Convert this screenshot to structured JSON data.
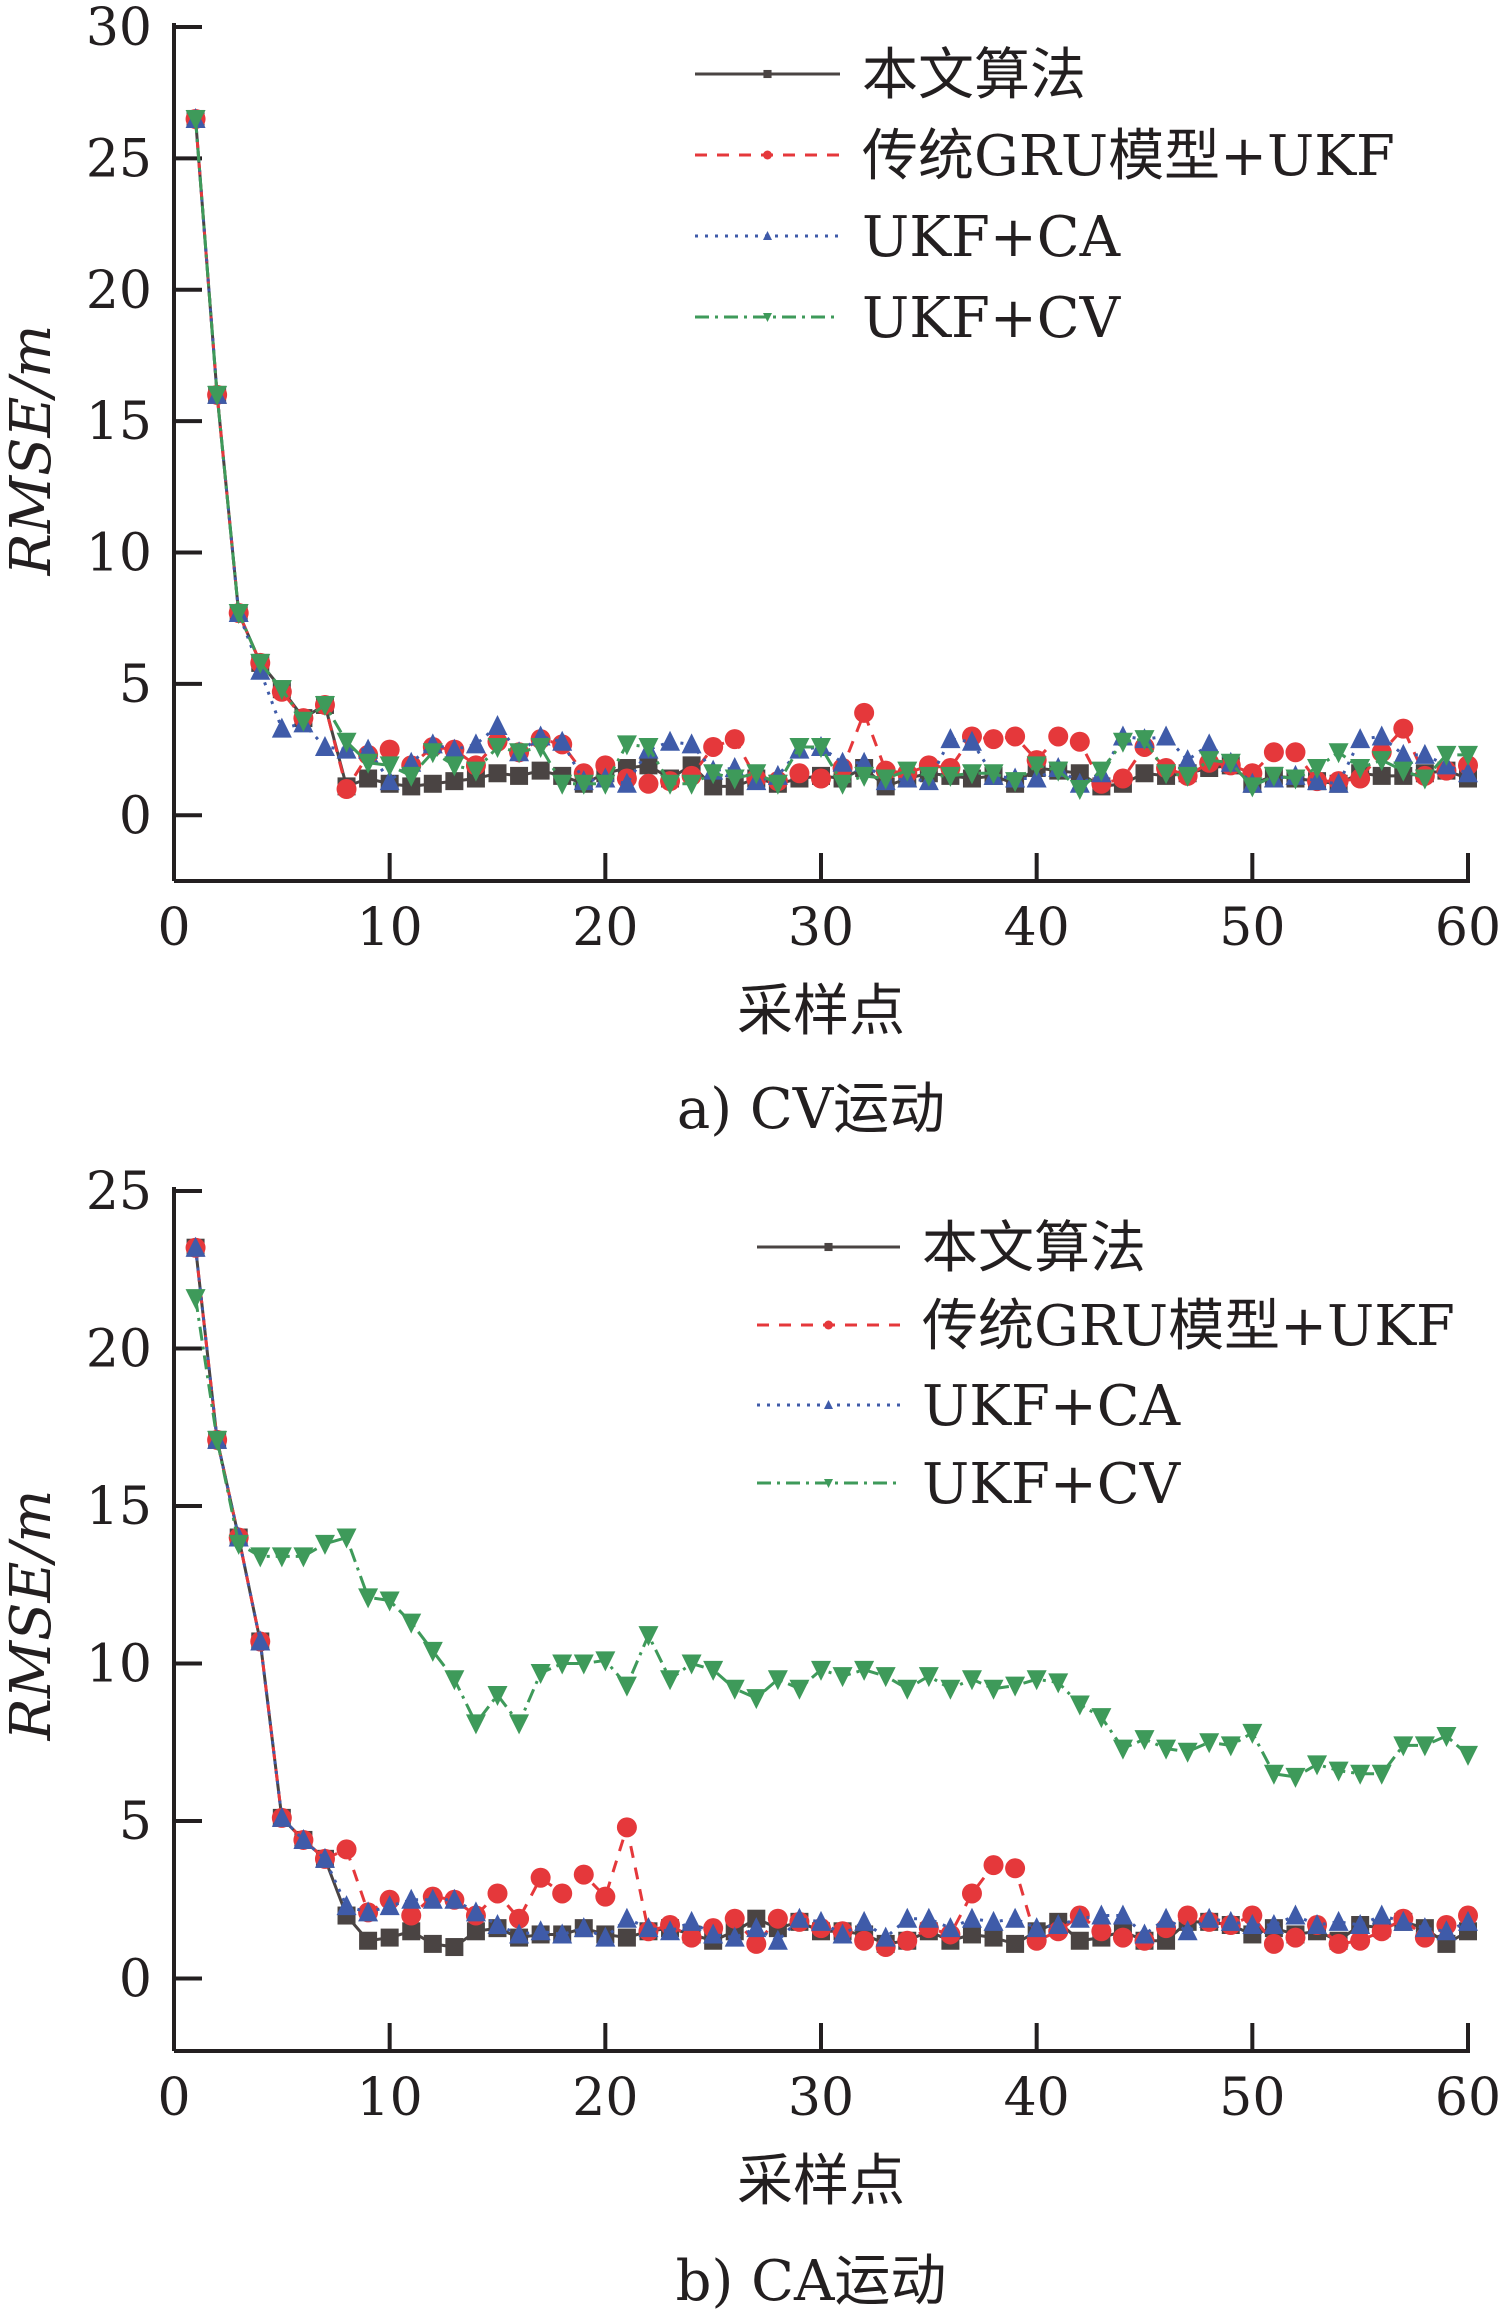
{
  "chart_data": [
    {
      "type": "line",
      "caption": "a) CV运动",
      "xlabel": "采样点",
      "ylabel": "RMSE/m",
      "xlim": [
        0,
        60
      ],
      "ylim": [
        -2.5,
        30
      ],
      "xticks": [
        0,
        10,
        20,
        30,
        40,
        50,
        60
      ],
      "yticks": [
        0,
        5,
        10,
        15,
        20,
        25,
        30
      ],
      "grid": false,
      "legend_position": "top-right",
      "x_start": 1,
      "series": [
        {
          "name": "本文算法",
          "color": "#4a4443",
          "marker": "square",
          "dash": "",
          "values": [
            26.5,
            16,
            7.7,
            5.8,
            4.8,
            3.7,
            4.2,
            1.1,
            1.4,
            1.2,
            1.1,
            1.2,
            1.3,
            1.4,
            1.6,
            1.5,
            1.7,
            1.5,
            1.2,
            1.6,
            1.8,
            1.9,
            1.4,
            1.9,
            1.1,
            1.1,
            1.4,
            1.2,
            1.4,
            1.5,
            1.4,
            1.8,
            1.1,
            1.4,
            1.6,
            1.5,
            1.4,
            1.5,
            1.2,
            1.8,
            1.7,
            1.6,
            1.1,
            1.2,
            1.6,
            1.5,
            1.6,
            1.8,
            1.9,
            1.2,
            1.5,
            1.4,
            1.3,
            1.2,
            1.6,
            1.5,
            1.5,
            1.6,
            1.7,
            1.4
          ]
        },
        {
          "name": "传统GRU模型+UKF",
          "color": "#e5383b",
          "marker": "circle",
          "dash": "12,10",
          "values": [
            26.5,
            16,
            7.7,
            5.8,
            4.7,
            3.7,
            4.2,
            1.0,
            2.3,
            2.5,
            1.9,
            2.6,
            2.5,
            1.9,
            2.8,
            2.4,
            2.9,
            2.7,
            1.6,
            1.9,
            1.4,
            1.2,
            1.3,
            1.5,
            2.6,
            2.9,
            1.4,
            1.3,
            1.6,
            1.4,
            1.8,
            3.9,
            1.7,
            1.6,
            1.9,
            1.8,
            3.0,
            2.9,
            3.0,
            2.1,
            3.0,
            2.8,
            1.2,
            1.4,
            2.6,
            1.8,
            1.5,
            2.0,
            1.9,
            1.6,
            2.4,
            2.4,
            1.3,
            1.3,
            1.4,
            2.4,
            3.3,
            1.5,
            1.7,
            1.9
          ]
        },
        {
          "name": "UKF+CA",
          "color": "#3f5ba9",
          "marker": "triangle-up",
          "dash": "3,7",
          "values": [
            26.5,
            16,
            7.7,
            5.5,
            3.3,
            3.5,
            2.6,
            2.5,
            2.5,
            1.3,
            2.0,
            2.7,
            2.5,
            2.7,
            3.4,
            2.4,
            3.0,
            2.8,
            1.3,
            1.4,
            1.2,
            2.5,
            2.8,
            2.7,
            1.7,
            1.8,
            1.3,
            1.5,
            2.5,
            2.6,
            2.0,
            2.0,
            1.3,
            1.4,
            1.3,
            2.9,
            2.8,
            1.5,
            1.4,
            1.4,
            1.8,
            1.2,
            1.6,
            3.0,
            2.9,
            3.0,
            2.1,
            2.7,
            2.0,
            1.2,
            1.4,
            1.5,
            1.3,
            1.2,
            2.9,
            3.0,
            2.3,
            2.3,
            1.9,
            1.6
          ]
        },
        {
          "name": "UKF+CV",
          "color": "#3e9a5a",
          "marker": "triangle-down",
          "dash": "14,6,3,6",
          "values": [
            26.5,
            16,
            7.7,
            5.8,
            4.8,
            3.6,
            4.2,
            2.8,
            2.0,
            1.9,
            1.5,
            2.4,
            1.9,
            1.7,
            2.6,
            2.4,
            2.6,
            1.2,
            1.2,
            1.2,
            2.7,
            2.6,
            1.2,
            1.2,
            1.6,
            1.4,
            1.6,
            1.2,
            2.6,
            2.6,
            1.2,
            1.5,
            1.4,
            1.7,
            1.5,
            1.5,
            1.6,
            1.6,
            1.3,
            1.9,
            1.7,
            1.0,
            1.7,
            2.8,
            2.9,
            1.6,
            1.5,
            2.1,
            2.0,
            1.1,
            1.5,
            1.4,
            1.8,
            2.4,
            1.8,
            2.1,
            1.7,
            1.4,
            2.3,
            2.3
          ]
        }
      ]
    },
    {
      "type": "line",
      "caption": "b) CA运动",
      "xlabel": "采样点",
      "ylabel": "RMSE/m",
      "xlim": [
        0,
        60
      ],
      "ylim": [
        -2.3,
        25
      ],
      "xticks": [
        0,
        10,
        20,
        30,
        40,
        50,
        60
      ],
      "yticks": [
        0,
        5,
        10,
        15,
        20,
        25
      ],
      "grid": false,
      "legend_position": "top-right",
      "x_start": 1,
      "series": [
        {
          "name": "本文算法",
          "color": "#4a4443",
          "marker": "square",
          "dash": "",
          "values": [
            23.2,
            17.1,
            14,
            10.7,
            5.1,
            4.4,
            3.8,
            2.0,
            1.2,
            1.3,
            1.5,
            1.1,
            1.0,
            1.5,
            1.6,
            1.3,
            1.4,
            1.4,
            1.6,
            1.4,
            1.3,
            1.5,
            1.6,
            1.4,
            1.2,
            1.5,
            1.9,
            1.6,
            1.8,
            1.5,
            1.5,
            1.4,
            1.1,
            1.2,
            1.5,
            1.2,
            1.4,
            1.3,
            1.1,
            1.5,
            1.8,
            1.2,
            1.3,
            1.5,
            1.2,
            1.2,
            1.8,
            1.8,
            1.7,
            1.4,
            1.6,
            1.4,
            1.5,
            1.2,
            1.7,
            1.6,
            1.8,
            1.6,
            1.1,
            1.5
          ]
        },
        {
          "name": "传统GRU模型+UKF",
          "color": "#e5383b",
          "marker": "circle",
          "dash": "12,10",
          "values": [
            23.2,
            17.1,
            14,
            10.7,
            5.1,
            4.4,
            3.8,
            4.1,
            2.1,
            2.5,
            2.0,
            2.6,
            2.5,
            2.0,
            2.7,
            1.9,
            3.2,
            2.7,
            3.3,
            2.6,
            4.8,
            1.5,
            1.7,
            1.3,
            1.6,
            1.9,
            1.1,
            1.9,
            1.8,
            1.6,
            1.5,
            1.2,
            1.0,
            1.2,
            1.6,
            1.4,
            2.7,
            3.6,
            3.5,
            1.2,
            1.5,
            2.0,
            1.5,
            1.3,
            1.2,
            1.6,
            2.0,
            1.8,
            1.7,
            2.0,
            1.1,
            1.3,
            1.7,
            1.1,
            1.2,
            1.5,
            1.9,
            1.3,
            1.7,
            2.0
          ]
        },
        {
          "name": "UKF+CA",
          "color": "#3f5ba9",
          "marker": "triangle-up",
          "dash": "3,7",
          "values": [
            23.2,
            17.1,
            14,
            10.7,
            5.1,
            4.4,
            3.8,
            2.3,
            2.1,
            2.3,
            2.5,
            2.5,
            2.5,
            2.1,
            1.7,
            1.4,
            1.5,
            1.4,
            1.6,
            1.3,
            1.9,
            1.6,
            1.5,
            1.8,
            1.4,
            1.3,
            1.6,
            1.2,
            1.9,
            1.8,
            1.4,
            1.8,
            1.3,
            1.9,
            1.9,
            1.6,
            1.9,
            1.8,
            1.9,
            1.6,
            1.7,
            1.9,
            2.0,
            2.0,
            1.4,
            1.9,
            1.5,
            1.9,
            1.8,
            1.7,
            1.7,
            2.0,
            1.7,
            1.8,
            1.7,
            2.0,
            1.8,
            1.6,
            1.5,
            1.8
          ]
        },
        {
          "name": "UKF+CV",
          "color": "#3e9a5a",
          "marker": "triangle-down",
          "dash": "14,6,3,6",
          "values": [
            21.6,
            17.1,
            13.8,
            13.4,
            13.4,
            13.4,
            13.8,
            14.0,
            12.1,
            12.0,
            11.3,
            10.4,
            9.5,
            8.1,
            9.0,
            8.1,
            9.7,
            10.0,
            10.0,
            10.1,
            9.3,
            10.9,
            9.5,
            10.0,
            9.8,
            9.2,
            8.9,
            9.5,
            9.2,
            9.8,
            9.6,
            9.8,
            9.6,
            9.2,
            9.6,
            9.2,
            9.5,
            9.2,
            9.3,
            9.5,
            9.4,
            8.7,
            8.3,
            7.3,
            7.6,
            7.3,
            7.2,
            7.5,
            7.4,
            7.8,
            6.5,
            6.4,
            6.8,
            6.6,
            6.5,
            6.5,
            7.4,
            7.4,
            7.7,
            7.1
          ]
        }
      ]
    }
  ]
}
